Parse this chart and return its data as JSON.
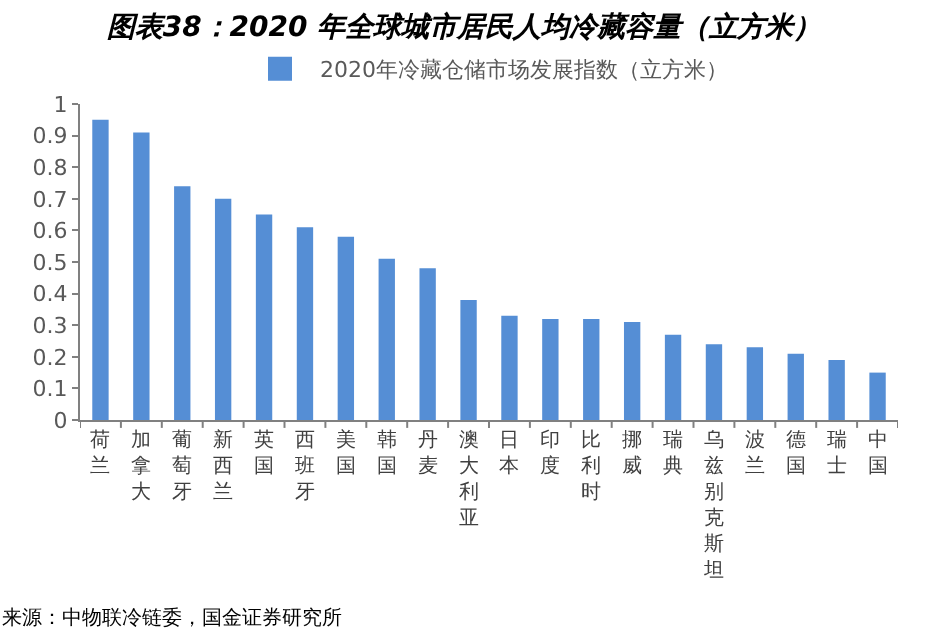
{
  "chart_data": {
    "type": "bar",
    "title": "图表38：2020 年全球城市居民人均冷藏容量（立方米）",
    "categories": [
      "荷兰",
      "加拿大",
      "葡萄牙",
      "新西兰",
      "英国",
      "西班牙",
      "美国",
      "韩国",
      "丹麦",
      "澳大利亚",
      "日本",
      "印度",
      "比利时",
      "挪威",
      "瑞典",
      "乌兹别克斯坦",
      "波兰",
      "德国",
      "瑞士",
      "中国"
    ],
    "series": [
      {
        "name": "2020年冷藏仓储市场发展指数（立方米）",
        "color": "#558ed5",
        "values": [
          0.95,
          0.91,
          0.74,
          0.7,
          0.65,
          0.61,
          0.58,
          0.51,
          0.48,
          0.38,
          0.33,
          0.32,
          0.32,
          0.31,
          0.27,
          0.24,
          0.23,
          0.21,
          0.19,
          0.15
        ]
      }
    ],
    "ylim": [
      0,
      1
    ],
    "yticks": [
      0,
      0.1,
      0.2,
      0.3,
      0.4,
      0.5,
      0.6,
      0.7,
      0.8,
      0.9,
      1
    ],
    "legend": "top",
    "annotations": [
      "来源：中物联冷链委，国金证券研究所"
    ]
  }
}
